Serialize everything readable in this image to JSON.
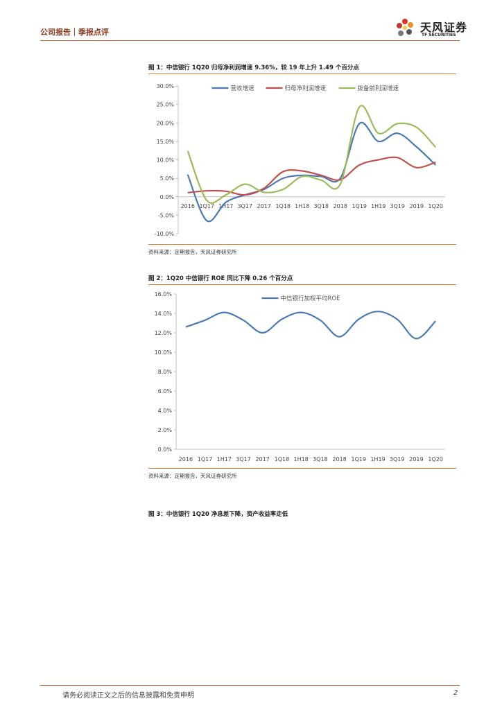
{
  "header": {
    "breadcrumb": "公司报告｜季报点评"
  },
  "logo": {
    "name_cn": "天风证券",
    "name_en": "TF SECURITIES"
  },
  "figures": [
    {
      "title": "图 1：中信银行 1Q20 归母净利润增速 9.36%，较 19 年上升 1.49 个百分点",
      "source": "资料来源：定期报告，天风证券研究所"
    },
    {
      "title": "图 2：1Q20 中信银行 ROE 同比下降 0.26 个百分点",
      "source": "资料来源：定期报告，天风证券研究所"
    },
    {
      "title": "图 3：中信银行 1Q20 净息差下降，资产收益率走低"
    }
  ],
  "footer": {
    "disclaimer": "请务必阅读正文之后的信息披露和免责申明",
    "page_number": "2"
  },
  "colors": {
    "blue": "#4a7ab5",
    "red": "#c0504d",
    "green": "#9bbb59",
    "orange_rule": "#e07b2e"
  },
  "chart_data": [
    {
      "type": "line",
      "title": "",
      "categories": [
        "2016",
        "1Q17",
        "1H17",
        "3Q17",
        "2017",
        "1Q18",
        "1H18",
        "3Q18",
        "2018",
        "1Q19",
        "1H19",
        "3Q19",
        "2019",
        "1Q20"
      ],
      "ylim": [
        -10,
        30
      ],
      "yticks": [
        "-10.0%",
        "-5.0%",
        "0.0%",
        "5.0%",
        "10.0%",
        "15.0%",
        "20.0%",
        "25.0%",
        "30.0%"
      ],
      "legend": "top",
      "series": [
        {
          "name": "营收增速",
          "color": "#4a7ab5",
          "values": [
            6.0,
            -6.5,
            -1.5,
            0.5,
            2.0,
            5.0,
            5.8,
            5.5,
            5.0,
            19.8,
            15.0,
            17.2,
            13.5,
            8.6
          ]
        },
        {
          "name": "归母净利润增速",
          "color": "#c0504d",
          "values": [
            1.1,
            1.6,
            1.5,
            0.5,
            2.3,
            6.8,
            7.0,
            5.8,
            4.6,
            8.6,
            10.0,
            10.6,
            7.9,
            9.36
          ]
        },
        {
          "name": "拨备前利润增速",
          "color": "#9bbb59",
          "values": [
            12.4,
            -1.0,
            0.5,
            3.4,
            1.2,
            2.0,
            5.5,
            4.5,
            3.4,
            24.3,
            17.2,
            19.8,
            18.8,
            13.4
          ]
        }
      ]
    },
    {
      "type": "line",
      "title": "",
      "categories": [
        "2016",
        "1Q17",
        "1H17",
        "3Q17",
        "2017",
        "1Q18",
        "1H18",
        "3Q18",
        "2018",
        "1Q19",
        "1H19",
        "3Q19",
        "2019",
        "1Q20"
      ],
      "ylim": [
        0,
        16
      ],
      "yticks": [
        "0.0%",
        "2.0%",
        "4.0%",
        "6.0%",
        "8.0%",
        "10.0%",
        "12.0%",
        "14.0%",
        "16.0%"
      ],
      "legend": "top",
      "series": [
        {
          "name": "中信银行加权平均ROE",
          "color": "#4a7ab5",
          "values": [
            12.6,
            13.3,
            14.1,
            13.3,
            12.0,
            13.4,
            14.1,
            13.3,
            11.6,
            13.4,
            14.2,
            13.4,
            11.4,
            13.2
          ]
        }
      ]
    }
  ]
}
